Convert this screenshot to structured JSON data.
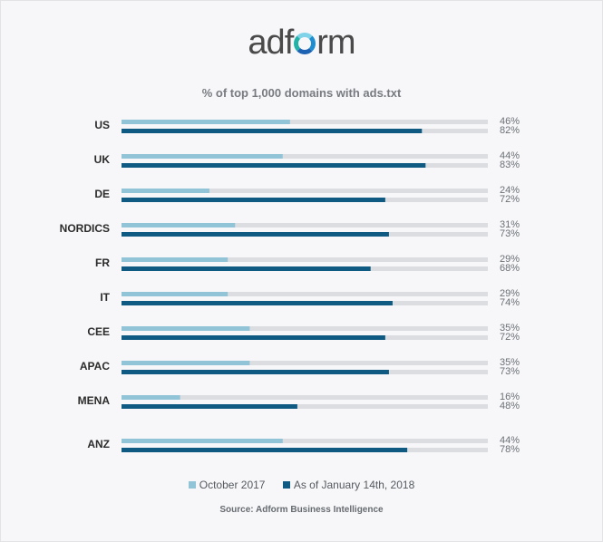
{
  "logo": {
    "pre": "adf",
    "post": "rm"
  },
  "colors": {
    "oct": "#92c4d8",
    "jan": "#0e5a82",
    "track": "#dcdde0",
    "label": "#2b2b2b",
    "value": "#6b7075"
  },
  "chart_data": {
    "type": "bar",
    "orientation": "horizontal",
    "title": "% of top 1,000 domains with ads.txt",
    "categories": [
      "US",
      "UK",
      "DE",
      "NORDICS",
      "FR",
      "IT",
      "CEE",
      "APAC",
      "MENA",
      "ANZ"
    ],
    "series": [
      {
        "name": "October 2017",
        "values": [
          46,
          44,
          24,
          31,
          29,
          29,
          35,
          35,
          16,
          44
        ],
        "labels": [
          "46%",
          "44%",
          "24%",
          "31%",
          "29%",
          "29%",
          "35%",
          "35%",
          "16%",
          "44%"
        ]
      },
      {
        "name": "As of January 14th, 2018",
        "values": [
          82,
          83,
          72,
          73,
          68,
          74,
          72,
          73,
          48,
          78
        ],
        "labels": [
          "82%",
          "83%",
          "72%",
          "73%",
          "68%",
          "74%",
          "72%",
          "73%",
          "48%",
          "78%"
        ]
      }
    ],
    "xlim": [
      0,
      100
    ],
    "legend": "bottom",
    "grid": false
  },
  "source": "Source: Adform Business Intelligence"
}
